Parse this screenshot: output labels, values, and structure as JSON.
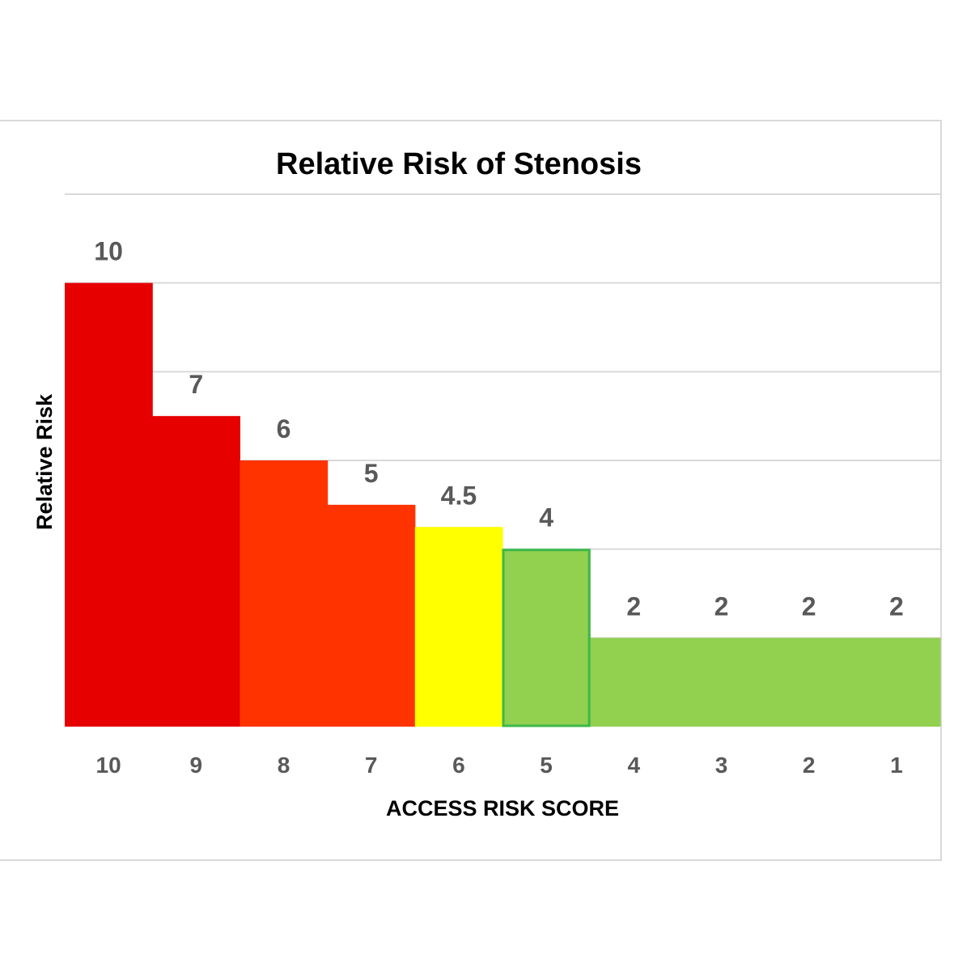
{
  "chart_data": {
    "type": "bar",
    "title": "Relative Risk of Stenosis",
    "xlabel": "ACCESS RISK SCORE",
    "ylabel": "Relative Risk",
    "categories": [
      "10",
      "9",
      "8",
      "7",
      "6",
      "5",
      "4",
      "3",
      "2",
      "1"
    ],
    "values": [
      10,
      7,
      6,
      5,
      4.5,
      4,
      2,
      2,
      2,
      2
    ],
    "data_labels": [
      "10",
      "7",
      "6",
      "5",
      "4.5",
      "4",
      "2",
      "2",
      "2",
      "2"
    ],
    "colors": [
      "#e60000",
      "#e60000",
      "#ff3300",
      "#ff3300",
      "#ffff00",
      "#92d050",
      "#92d050",
      "#92d050",
      "#92d050",
      "#92d050"
    ],
    "ylim": [
      0,
      12
    ],
    "grid": true,
    "legend": "none"
  }
}
